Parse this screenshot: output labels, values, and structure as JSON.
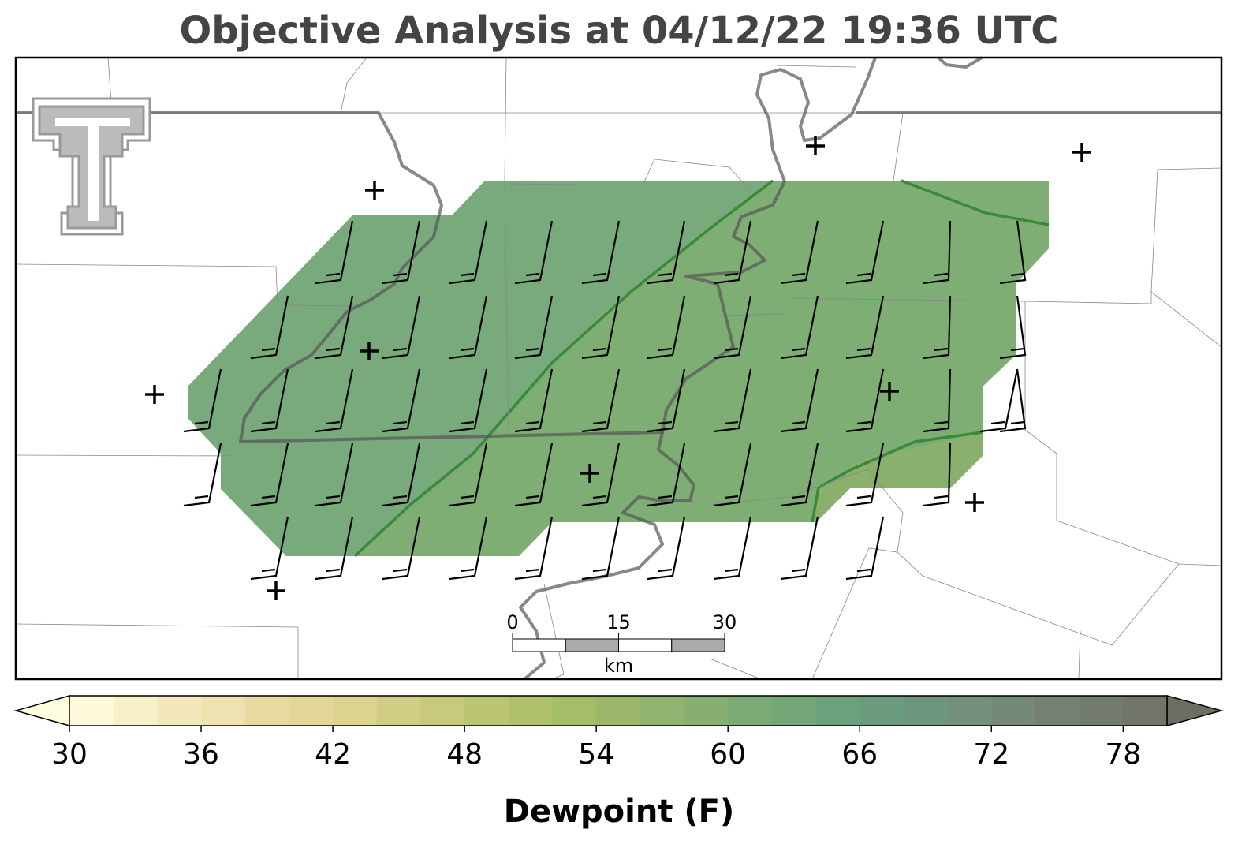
{
  "title": "Objective Analysis at 04/12/22 19:36 UTC",
  "colorbar": {
    "label": "Dewpoint (F)",
    "lim": [
      30,
      80
    ],
    "ticks": [
      30,
      36,
      42,
      48,
      54,
      60,
      66,
      72,
      78
    ],
    "colors": [
      "#fefbdc",
      "#f8f0c8",
      "#f2e8bc",
      "#ede2b0",
      "#e7dba1",
      "#e2d799",
      "#dbd38f",
      "#d1cd84",
      "#c7c97b",
      "#bcc571",
      "#b0c16b",
      "#a6bd68",
      "#9bb86c",
      "#90b46f",
      "#86af71",
      "#7bab74",
      "#73a777",
      "#6ca27b",
      "#6b9c7f",
      "#6e957f",
      "#738f7d",
      "#75897a",
      "#767f74",
      "#737a70",
      "#717569"
    ],
    "extend_colors": [
      "#fffde0",
      "#6b6f63"
    ]
  },
  "scalebar": {
    "ticks": [
      0,
      15,
      30
    ],
    "unit": "km"
  }
}
